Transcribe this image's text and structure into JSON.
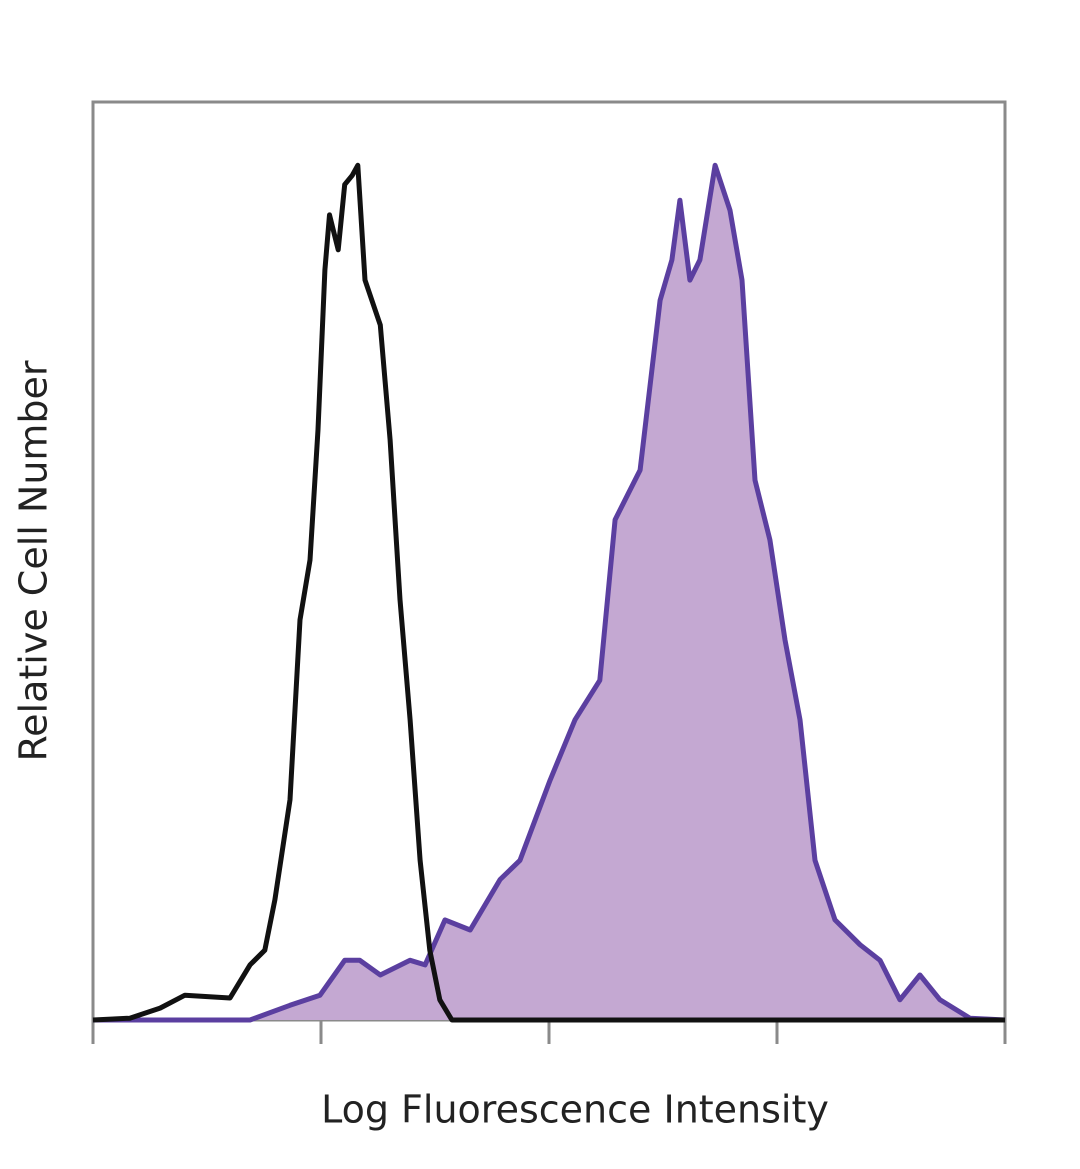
{
  "chart_data": {
    "type": "line",
    "x_label": "Log Fluorescence Intensity",
    "y_label": "Relative Cell Number",
    "xlog": true,
    "xlim": [
      1,
      10000
    ],
    "xticks": [
      1,
      10,
      100,
      1000,
      10000
    ],
    "ylim": [
      0,
      100
    ],
    "grid": false,
    "series": [
      {
        "color": "#5b3fa0",
        "fill": "#c4a8d2",
        "x": [
          1,
          4.88,
          7.31,
          9.9,
          12.7,
          14.8,
          18.2,
          24.6,
          28.6,
          35.0,
          45.1,
          61.0,
          74.6,
          101,
          130,
          167,
          195,
          251,
          307,
          346,
          375,
          415,
          459,
          535,
          622,
          702,
          801,
          931,
          1084,
          1262,
          1468,
          1796,
          2313,
          2830,
          3459,
          4236,
          5188,
          7020,
          10000
        ],
        "values": [
          0,
          0,
          1.6,
          2.7,
          6.5,
          6.5,
          4.9,
          6.5,
          6.0,
          10.9,
          9.8,
          15.3,
          17.4,
          26.1,
          32.7,
          37.0,
          54.5,
          59.9,
          78.4,
          82.8,
          89.3,
          80.6,
          82.8,
          93.1,
          88.2,
          80.6,
          58.8,
          52.3,
          41.4,
          32.7,
          17.4,
          10.9,
          8.2,
          6.5,
          2.2,
          4.9,
          2.2,
          0.2,
          0
        ]
      },
      {
        "color": "#111111",
        "x": [
          1,
          1.45,
          1.97,
          2.53,
          3.99,
          4.88,
          5.67,
          6.28,
          7.31,
          8.09,
          8.95,
          9.7,
          10.4,
          10.9,
          11.9,
          12.7,
          13.7,
          14.5,
          15.6,
          18.2,
          20.1,
          22.2,
          24.6,
          27.2,
          30.0,
          33.2,
          37.5,
          10000
        ],
        "values": [
          0,
          0.2,
          1.3,
          2.7,
          2.4,
          6.0,
          7.6,
          13.1,
          24.0,
          43.6,
          50.1,
          64.3,
          81.7,
          87.7,
          83.9,
          91.0,
          92.0,
          93.1,
          80.6,
          75.7,
          63.2,
          45.8,
          32.7,
          17.4,
          7.6,
          2.2,
          0,
          0
        ]
      }
    ]
  }
}
